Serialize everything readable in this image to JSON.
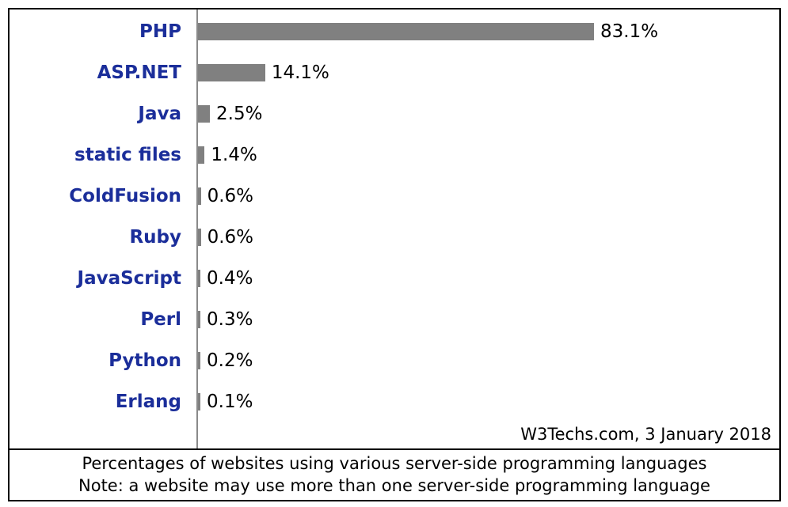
{
  "chart_data": {
    "type": "bar",
    "orientation": "horizontal",
    "categories": [
      "PHP",
      "ASP.NET",
      "Java",
      "static files",
      "ColdFusion",
      "Ruby",
      "JavaScript",
      "Perl",
      "Python",
      "Erlang"
    ],
    "values": [
      83.1,
      14.1,
      2.5,
      1.4,
      0.6,
      0.6,
      0.4,
      0.3,
      0.2,
      0.1
    ],
    "value_labels": [
      "83.1%",
      "14.1%",
      "2.5%",
      "1.4%",
      "0.6%",
      "0.6%",
      "0.4%",
      "0.3%",
      "0.2%",
      "0.1%"
    ],
    "unit": "%",
    "xlim": [
      0,
      83.1
    ],
    "grid": false,
    "colors": {
      "bar": "#808080",
      "category_label": "#1b2e9a"
    }
  },
  "source": "W3Techs.com, 3 January 2018",
  "caption": {
    "line1": "Percentages of websites using various server-side programming languages",
    "line2": "Note: a website may use more than one server-side programming language"
  }
}
